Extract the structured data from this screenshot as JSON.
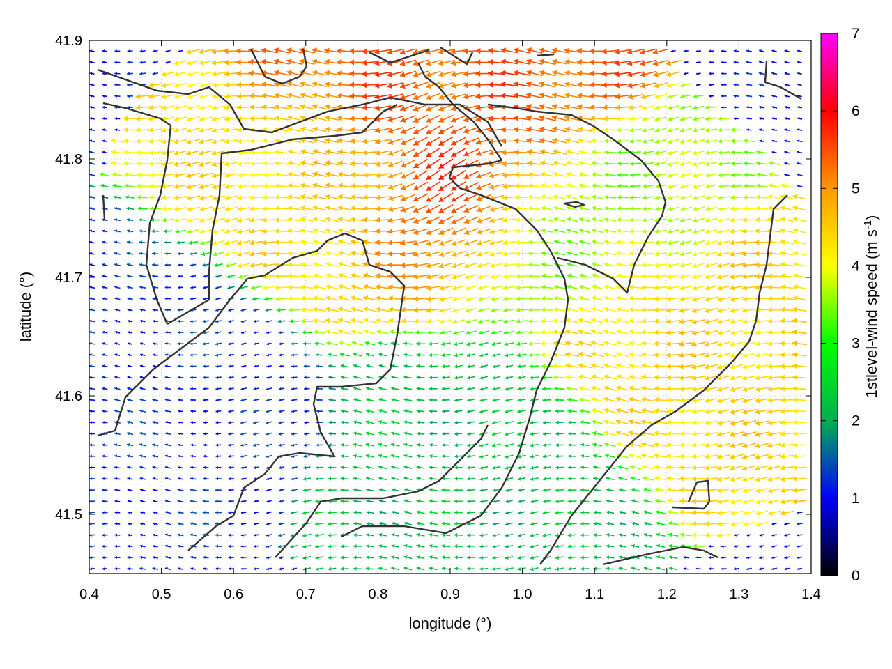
{
  "chart_data": {
    "type": "vector-field",
    "xlabel": "longitude (°)",
    "ylabel": "latitude (°)",
    "xlim": [
      0.4,
      1.4
    ],
    "ylim": [
      41.45,
      41.9
    ],
    "xticks": [
      "0.4",
      "0.5",
      "0.6",
      "0.7",
      "0.8",
      "0.9",
      "1.0",
      "1.1",
      "1.2",
      "1.3",
      "1.4"
    ],
    "yticks": [
      "41.5",
      "41.6",
      "41.7",
      "41.8",
      "41.9"
    ],
    "grid": true,
    "colorbar": {
      "label_main": "1stlevel-wind speed (m s",
      "label_sup": "-1",
      "label_end": ")",
      "range": [
        0,
        7
      ],
      "ticks": [
        "0",
        "1",
        "2",
        "3",
        "4",
        "5",
        "6",
        "7"
      ],
      "colormap": [
        "#000000",
        "#0000ff",
        "#00b050",
        "#00ff00",
        "#ffff00",
        "#ff9900",
        "#ff0000",
        "#ff00ff"
      ]
    },
    "predominant_direction": "from east to west (easterly wind)",
    "wind_speed_regions": [
      {
        "region": "core maximum",
        "lon": 0.87,
        "lat": 41.77,
        "speed": 5.6
      },
      {
        "region": "north-east peak",
        "lon": 0.88,
        "lat": 41.85,
        "speed": 5.4
      },
      {
        "region": "central plateau band",
        "lon": 0.75,
        "lat": 41.76,
        "speed": 4.3
      },
      {
        "region": "east band",
        "lon": 1.05,
        "lat": 41.72,
        "speed": 3.6
      },
      {
        "region": "south-east lobe",
        "lon": 1.18,
        "lat": 41.64,
        "speed": 4.4
      },
      {
        "region": "south plain",
        "lon": 0.95,
        "lat": 41.56,
        "speed": 2.2
      },
      {
        "region": "west valleys",
        "lon": 0.5,
        "lat": 41.62,
        "speed": 1.2
      }
    ]
  }
}
